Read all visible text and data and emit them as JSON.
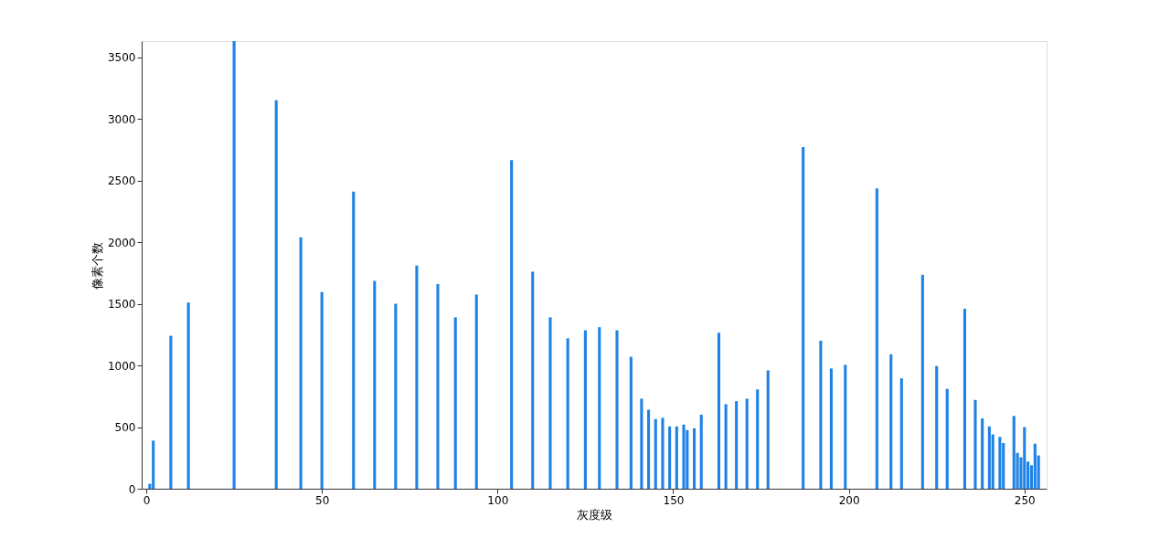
{
  "chart_data": {
    "type": "bar",
    "xlabel": "灰度级",
    "ylabel": "像素个数",
    "x": [
      1,
      2,
      7,
      12,
      25,
      37,
      44,
      50,
      59,
      65,
      71,
      77,
      83,
      88,
      94,
      104,
      110,
      115,
      120,
      125,
      129,
      134,
      138,
      141,
      143,
      145,
      147,
      149,
      151,
      153,
      154,
      156,
      158,
      163,
      165,
      168,
      171,
      174,
      177,
      187,
      192,
      195,
      199,
      208,
      212,
      215,
      221,
      225,
      228,
      233,
      236,
      238,
      240,
      241,
      243,
      244,
      247,
      248,
      249,
      250,
      251,
      252,
      253,
      254
    ],
    "values": [
      40,
      390,
      1240,
      1510,
      3630,
      3150,
      2040,
      1595,
      2410,
      1685,
      1500,
      1810,
      1660,
      1390,
      1575,
      2665,
      1760,
      1390,
      1220,
      1285,
      1310,
      1285,
      1070,
      730,
      640,
      565,
      575,
      505,
      505,
      520,
      475,
      490,
      600,
      1265,
      685,
      710,
      730,
      805,
      960,
      2770,
      1200,
      975,
      1005,
      2435,
      1090,
      895,
      1735,
      995,
      810,
      1460,
      720,
      570,
      505,
      440,
      420,
      370,
      590,
      290,
      255,
      500,
      220,
      190,
      365,
      270
    ],
    "color": "#1e82e6",
    "xlim": [
      0,
      255
    ],
    "xticks": [
      0,
      50,
      100,
      150,
      200,
      250
    ],
    "ylim": [
      0,
      3630
    ],
    "yticks": [
      0,
      500,
      1000,
      1500,
      2000,
      2500,
      3000,
      3500
    ],
    "grid": false
  }
}
